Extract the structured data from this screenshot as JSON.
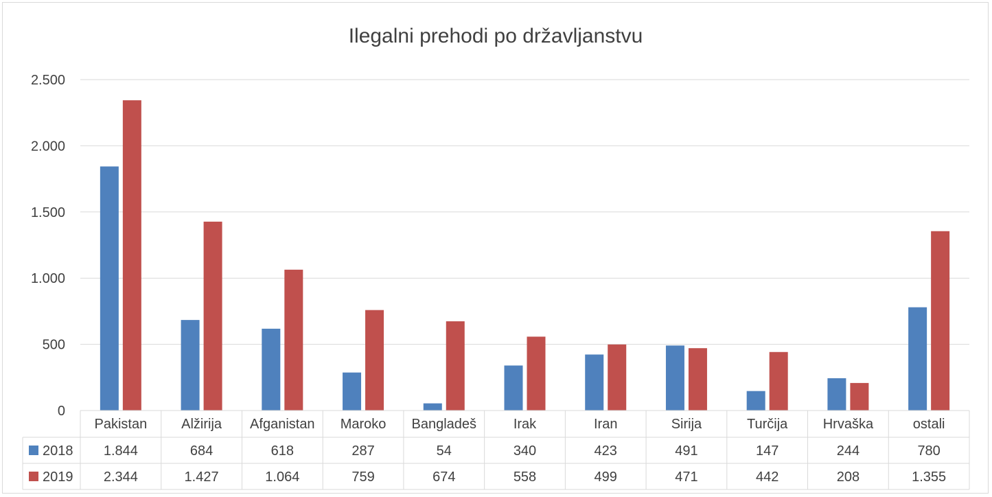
{
  "chart_data": {
    "type": "bar",
    "title": "Ilegalni prehodi po državljanstvu",
    "categories": [
      "Pakistan",
      "Alžirija",
      "Afganistan",
      "Maroko",
      "Bangladeš",
      "Irak",
      "Iran",
      "Sirija",
      "Turčija",
      "Hrvaška",
      "ostali"
    ],
    "series": [
      {
        "name": "2018",
        "color": "#4f81bd",
        "values": [
          1844,
          684,
          618,
          287,
          54,
          340,
          423,
          491,
          147,
          244,
          780
        ],
        "labels": [
          "1.844",
          "684",
          "618",
          "287",
          "54",
          "340",
          "423",
          "491",
          "147",
          "244",
          "780"
        ]
      },
      {
        "name": "2019",
        "color": "#c0504d",
        "values": [
          2344,
          1427,
          1064,
          759,
          674,
          558,
          499,
          471,
          442,
          208,
          1355
        ],
        "labels": [
          "2.344",
          "1.427",
          "1.064",
          "759",
          "674",
          "558",
          "499",
          "471",
          "442",
          "208",
          "1.355"
        ]
      }
    ],
    "ylim": [
      0,
      2500
    ],
    "yticks": [
      0,
      500,
      1000,
      1500,
      2000,
      2500
    ],
    "ytick_labels": [
      "0",
      "500",
      "1.000",
      "1.500",
      "2.000",
      "2.500"
    ],
    "grid": true,
    "legend": "data-table"
  }
}
